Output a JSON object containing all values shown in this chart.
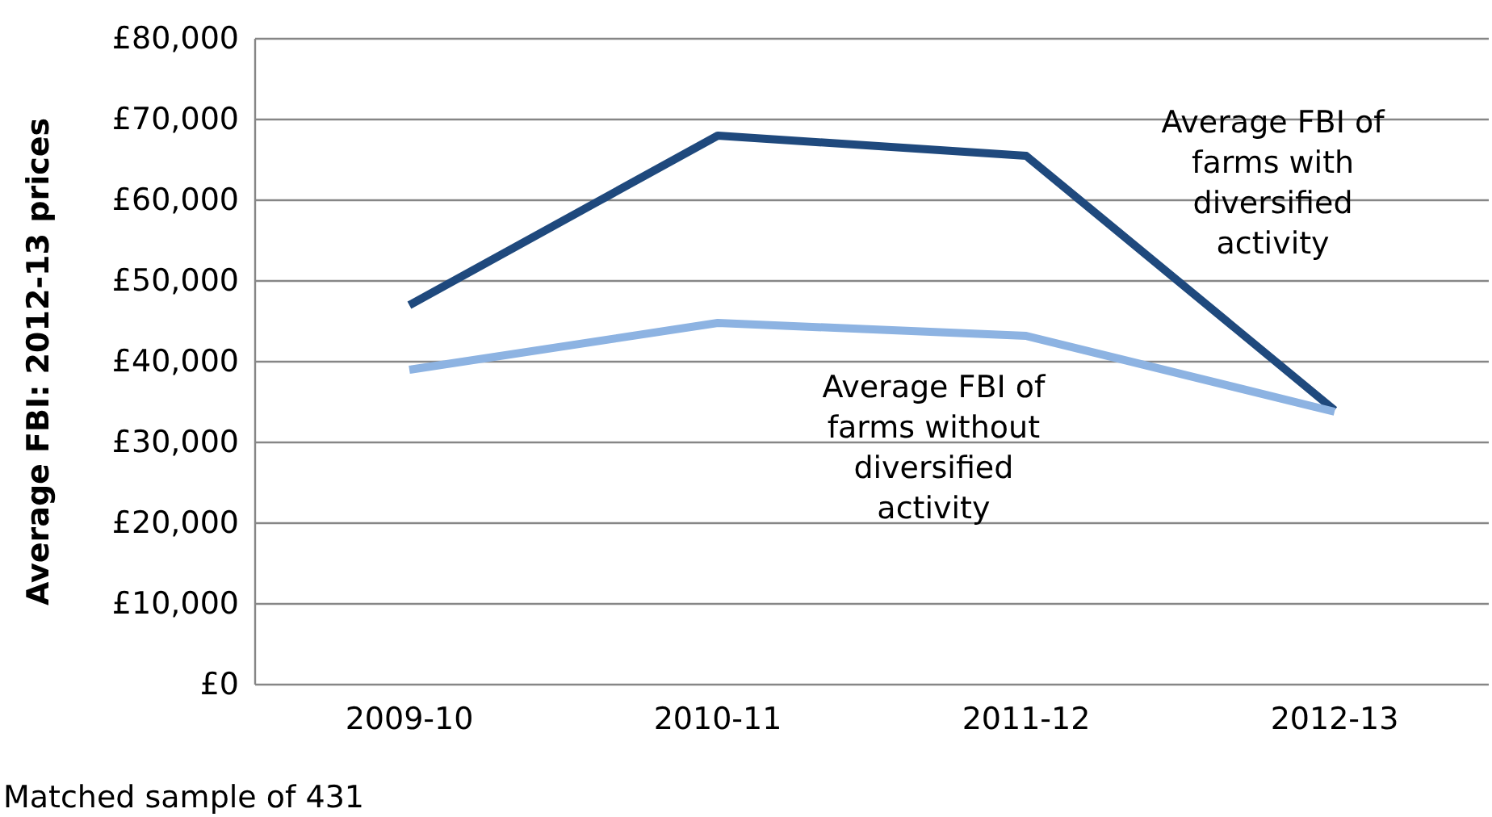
{
  "chart_data": {
    "type": "line",
    "ylabel": "Average FBI: 2012-13 prices",
    "categories": [
      "2009-10",
      "2010-11",
      "2011-12",
      "2012-13"
    ],
    "series": [
      {
        "name": "Average FBI of farms with diversified activity",
        "color": "#1f497d",
        "values": [
          47000,
          68000,
          65500,
          34000
        ]
      },
      {
        "name": "Average FBI of farms without diversified activity",
        "color": "#8db3e2",
        "values": [
          39000,
          44800,
          43200,
          33800
        ]
      }
    ],
    "ylim": [
      0,
      80000
    ],
    "yticks": [
      {
        "value": 0,
        "label": "£0"
      },
      {
        "value": 10000,
        "label": "£10,000"
      },
      {
        "value": 20000,
        "label": "£20,000"
      },
      {
        "value": 30000,
        "label": "£30,000"
      },
      {
        "value": 40000,
        "label": "£40,000"
      },
      {
        "value": 50000,
        "label": "£50,000"
      },
      {
        "value": 60000,
        "label": "£60,000"
      },
      {
        "value": 70000,
        "label": "£70,000"
      },
      {
        "value": 80000,
        "label": "£80,000"
      }
    ],
    "grid": "y",
    "legend": false,
    "marker": "none",
    "line_style": "solid",
    "annotations": [
      "Matched sample of 431"
    ]
  }
}
